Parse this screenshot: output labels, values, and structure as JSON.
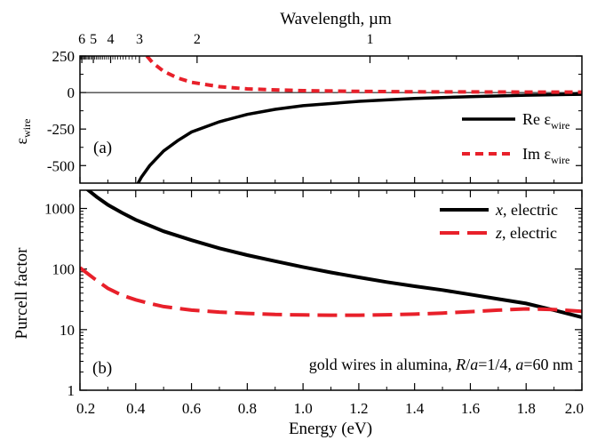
{
  "chart_data": [
    {
      "panel_label": "(a)",
      "type": "line",
      "top_axis_title": "Wavelength, µm",
      "top_ticks_major": [
        {
          "value": 6,
          "label": "6"
        },
        {
          "value": 5,
          "label": "5"
        },
        {
          "value": 4,
          "label": "4"
        },
        {
          "value": 3,
          "label": "3"
        },
        {
          "value": 2,
          "label": "2"
        },
        {
          "value": 1,
          "label": "1"
        }
      ],
      "ylabel": "ε",
      "ylabel_sub": "wire",
      "ylim": [
        -620,
        250
      ],
      "yticks": [
        250,
        0,
        -250,
        -500
      ],
      "ytick_labels": [
        "250",
        "0",
        "-250",
        "-500"
      ],
      "xlim": [
        0.2,
        2.0
      ],
      "legend_position": "bottom-right",
      "series": [
        {
          "name": "Re ε",
          "name_sub": "wire",
          "color": "#000000",
          "dash": "solid",
          "x": [
            0.4,
            0.42,
            0.45,
            0.5,
            0.55,
            0.6,
            0.7,
            0.8,
            0.9,
            1.0,
            1.2,
            1.4,
            1.6,
            1.8,
            2.0
          ],
          "y": [
            -650,
            -580,
            -500,
            -400,
            -330,
            -270,
            -200,
            -150,
            -115,
            -90,
            -60,
            -40,
            -28,
            -18,
            -12
          ]
        },
        {
          "name": "Im ε",
          "name_sub": "wire",
          "color": "#e8202a",
          "dash": "dashed",
          "x": [
            0.44,
            0.46,
            0.5,
            0.55,
            0.6,
            0.7,
            0.8,
            0.9,
            1.0,
            1.2,
            1.4,
            1.6,
            1.8,
            2.0
          ],
          "y": [
            250,
            205,
            145,
            100,
            70,
            40,
            25,
            18,
            13,
            8,
            5,
            4,
            3,
            3
          ]
        }
      ]
    },
    {
      "panel_label": "(b)",
      "type": "line",
      "xlabel": "Energy (eV)",
      "ylabel": "Purcell factor",
      "y_scale": "log",
      "ylim": [
        1,
        2000
      ],
      "yticks": [
        1,
        10,
        100,
        1000
      ],
      "ytick_labels": [
        "1",
        "10",
        "100",
        "1000"
      ],
      "xlim": [
        0.2,
        2.0
      ],
      "xticks": [
        0.2,
        0.4,
        0.6,
        0.8,
        1.0,
        1.2,
        1.4,
        1.6,
        1.8,
        2.0
      ],
      "xtick_labels": [
        "0.2",
        "0.4",
        "0.6",
        "0.8",
        "1.0",
        "1.2",
        "1.4",
        "1.6",
        "1.8",
        "2.0"
      ],
      "annotation_prefix": "gold wires in alumina, ",
      "annotation_r": "R",
      "annotation_slash": "/",
      "annotation_a1": "a",
      "annotation_eq1": "=1/4, ",
      "annotation_a2": "a",
      "annotation_eq2": "=60 nm",
      "legend_position": "top-right",
      "series": [
        {
          "name_var": "x",
          "name_rest": ", electric",
          "color": "#000000",
          "dash": "solid",
          "x": [
            0.2,
            0.23,
            0.26,
            0.3,
            0.35,
            0.4,
            0.5,
            0.6,
            0.7,
            0.8,
            0.9,
            1.0,
            1.1,
            1.2,
            1.3,
            1.4,
            1.5,
            1.6,
            1.7,
            1.8,
            1.9,
            2.0
          ],
          "y": [
            2600,
            2000,
            1550,
            1150,
            850,
            650,
            420,
            300,
            220,
            170,
            135,
            108,
            88,
            73,
            61,
            52,
            45,
            38,
            32,
            27,
            21,
            16
          ]
        },
        {
          "name_var": "z",
          "name_rest": ", electric",
          "color": "#e8202a",
          "dash": "dashed",
          "x": [
            0.2,
            0.25,
            0.3,
            0.35,
            0.4,
            0.45,
            0.5,
            0.6,
            0.7,
            0.8,
            0.9,
            1.0,
            1.1,
            1.2,
            1.3,
            1.4,
            1.5,
            1.6,
            1.7,
            1.8,
            1.9,
            2.0
          ],
          "y": [
            105,
            70,
            48,
            37,
            31,
            27,
            24,
            21,
            19.5,
            18.5,
            17.8,
            17.5,
            17.3,
            17.3,
            17.6,
            18,
            18.8,
            19.8,
            21,
            22,
            21.5,
            20
          ]
        }
      ]
    }
  ]
}
